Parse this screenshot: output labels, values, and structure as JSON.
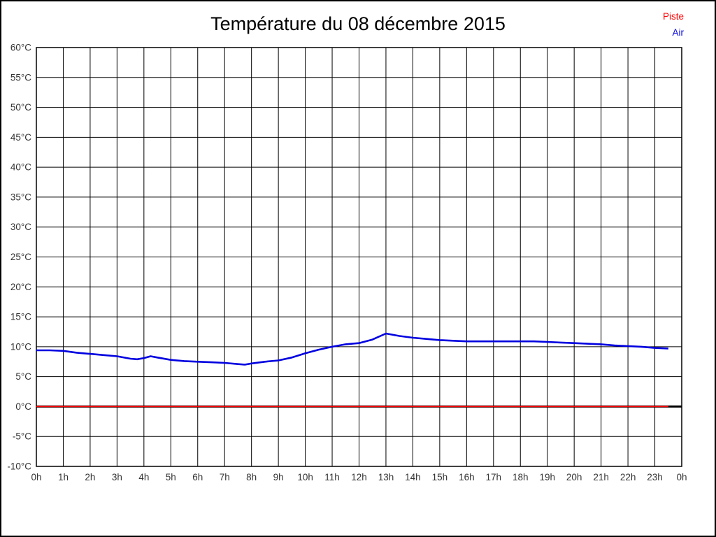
{
  "chart": {
    "title": "Température du 08 décembre 2015",
    "legend": [
      {
        "label": "Piste",
        "color": "#ff0000"
      },
      {
        "label": "Air",
        "color": "#0000e0"
      }
    ]
  },
  "chart_data": {
    "type": "line",
    "title": "Température du 08 décembre 2015",
    "xlabel": "",
    "ylabel": "",
    "grid": true,
    "legend_position": "top-right",
    "ylim": [
      -10,
      60
    ],
    "ytick_step": 5,
    "y_ticks": [
      60,
      55,
      50,
      45,
      40,
      35,
      30,
      25,
      20,
      15,
      10,
      5,
      0,
      -5,
      -10
    ],
    "y_tick_labels": [
      "60°C",
      "55°C",
      "50°C",
      "45°C",
      "40°C",
      "35°C",
      "30°C",
      "25°C",
      "20°C",
      "15°C",
      "10°C",
      "5°C",
      "0°C",
      "-5°C",
      "-10°C"
    ],
    "xlim_hours": [
      0,
      24
    ],
    "x_tick_labels": [
      "0h",
      "1h",
      "2h",
      "3h",
      "4h",
      "5h",
      "6h",
      "7h",
      "8h",
      "9h",
      "10h",
      "11h",
      "12h",
      "13h",
      "14h",
      "15h",
      "16h",
      "17h",
      "18h",
      "19h",
      "20h",
      "21h",
      "22h",
      "23h",
      "0h"
    ],
    "zero_axis": {
      "value": 0,
      "color": "#000000"
    },
    "series": [
      {
        "name": "Piste",
        "color": "#ff0000",
        "x": [
          0,
          0.5,
          1,
          1.5,
          2,
          2.5,
          3,
          3.5,
          3.75,
          4,
          4.25,
          4.5,
          5,
          5.5,
          6,
          6.5,
          7,
          7.5,
          7.75,
          8,
          8.5,
          9,
          9.5,
          10,
          10.5,
          11,
          11.5,
          12,
          12.5,
          13,
          13.5,
          14,
          14.5,
          15,
          15.5,
          16,
          16.5,
          17,
          17.5,
          18,
          18.5,
          19,
          19.5,
          20,
          20.5,
          21,
          21.5,
          22,
          22.5,
          23,
          23.5
        ],
        "values": [
          0.0,
          0.0,
          0.0,
          0.0,
          0.0,
          0.0,
          0.0,
          0.0,
          0.0,
          0.0,
          0.0,
          0.0,
          0.0,
          0.0,
          0.0,
          0.0,
          0.0,
          0.0,
          0.0,
          0.0,
          0.0,
          0.0,
          0.0,
          0.0,
          0.0,
          0.0,
          0.0,
          0.0,
          0.0,
          0.0,
          0.0,
          0.0,
          0.0,
          0.0,
          0.0,
          0.0,
          0.0,
          0.0,
          0.0,
          0.0,
          0.0,
          0.0,
          0.0,
          0.0,
          0.0,
          0.0,
          0.0,
          0.0,
          0.0,
          0.0,
          0.0
        ]
      },
      {
        "name": "Air",
        "color": "#0000e0",
        "x": [
          0,
          0.5,
          1,
          1.5,
          2,
          2.5,
          3,
          3.5,
          3.75,
          4,
          4.25,
          4.5,
          5,
          5.5,
          6,
          6.5,
          7,
          7.5,
          7.75,
          8,
          8.5,
          9,
          9.5,
          10,
          10.5,
          11,
          11.5,
          12,
          12.5,
          13,
          13.5,
          14,
          14.5,
          15,
          15.5,
          16,
          16.5,
          17,
          17.5,
          18,
          18.5,
          19,
          19.5,
          20,
          20.5,
          21,
          21.5,
          22,
          22.5,
          23,
          23.5
        ],
        "values": [
          9.4,
          9.4,
          9.3,
          9.0,
          8.8,
          8.6,
          8.4,
          8.0,
          7.9,
          8.1,
          8.4,
          8.2,
          7.8,
          7.6,
          7.5,
          7.4,
          7.3,
          7.1,
          7.0,
          7.2,
          7.5,
          7.7,
          8.2,
          8.9,
          9.5,
          10.0,
          10.4,
          10.6,
          11.2,
          12.2,
          11.8,
          11.5,
          11.3,
          11.1,
          11.0,
          10.9,
          10.9,
          10.9,
          10.9,
          10.9,
          10.9,
          10.8,
          10.7,
          10.6,
          10.5,
          10.4,
          10.2,
          10.1,
          10.0,
          9.8,
          9.7
        ]
      }
    ]
  }
}
